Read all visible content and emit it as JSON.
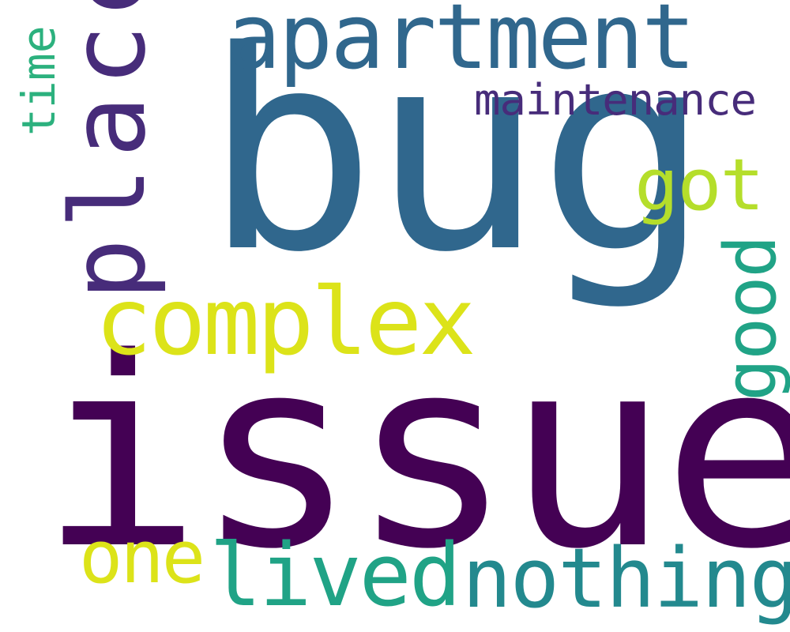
{
  "wordcloud": {
    "background": "#ffffff",
    "words": {
      "issue": {
        "text": "issue",
        "color": "#440154",
        "orientation": "horizontal"
      },
      "bug": {
        "text": "bug",
        "color": "#30678d",
        "orientation": "horizontal"
      },
      "apartment": {
        "text": "apartment",
        "color": "#30678d",
        "orientation": "horizontal"
      },
      "place": {
        "text": "place",
        "color": "#472c7a",
        "orientation": "vertical"
      },
      "complex": {
        "text": "complex",
        "color": "#dce319",
        "orientation": "horizontal"
      },
      "maintenance": {
        "text": "maintenance",
        "color": "#472c7a",
        "orientation": "horizontal"
      },
      "got": {
        "text": "got",
        "color": "#b5de2b",
        "orientation": "horizontal"
      },
      "good": {
        "text": "good",
        "color": "#20a386",
        "orientation": "vertical"
      },
      "time": {
        "text": "time",
        "color": "#2cb17e",
        "orientation": "vertical"
      },
      "nothing": {
        "text": "nothing",
        "color": "#23898e",
        "orientation": "horizontal"
      },
      "lived": {
        "text": "lived",
        "color": "#20a386",
        "orientation": "horizontal"
      },
      "one": {
        "text": "one",
        "color": "#dce319",
        "orientation": "horizontal"
      }
    }
  }
}
